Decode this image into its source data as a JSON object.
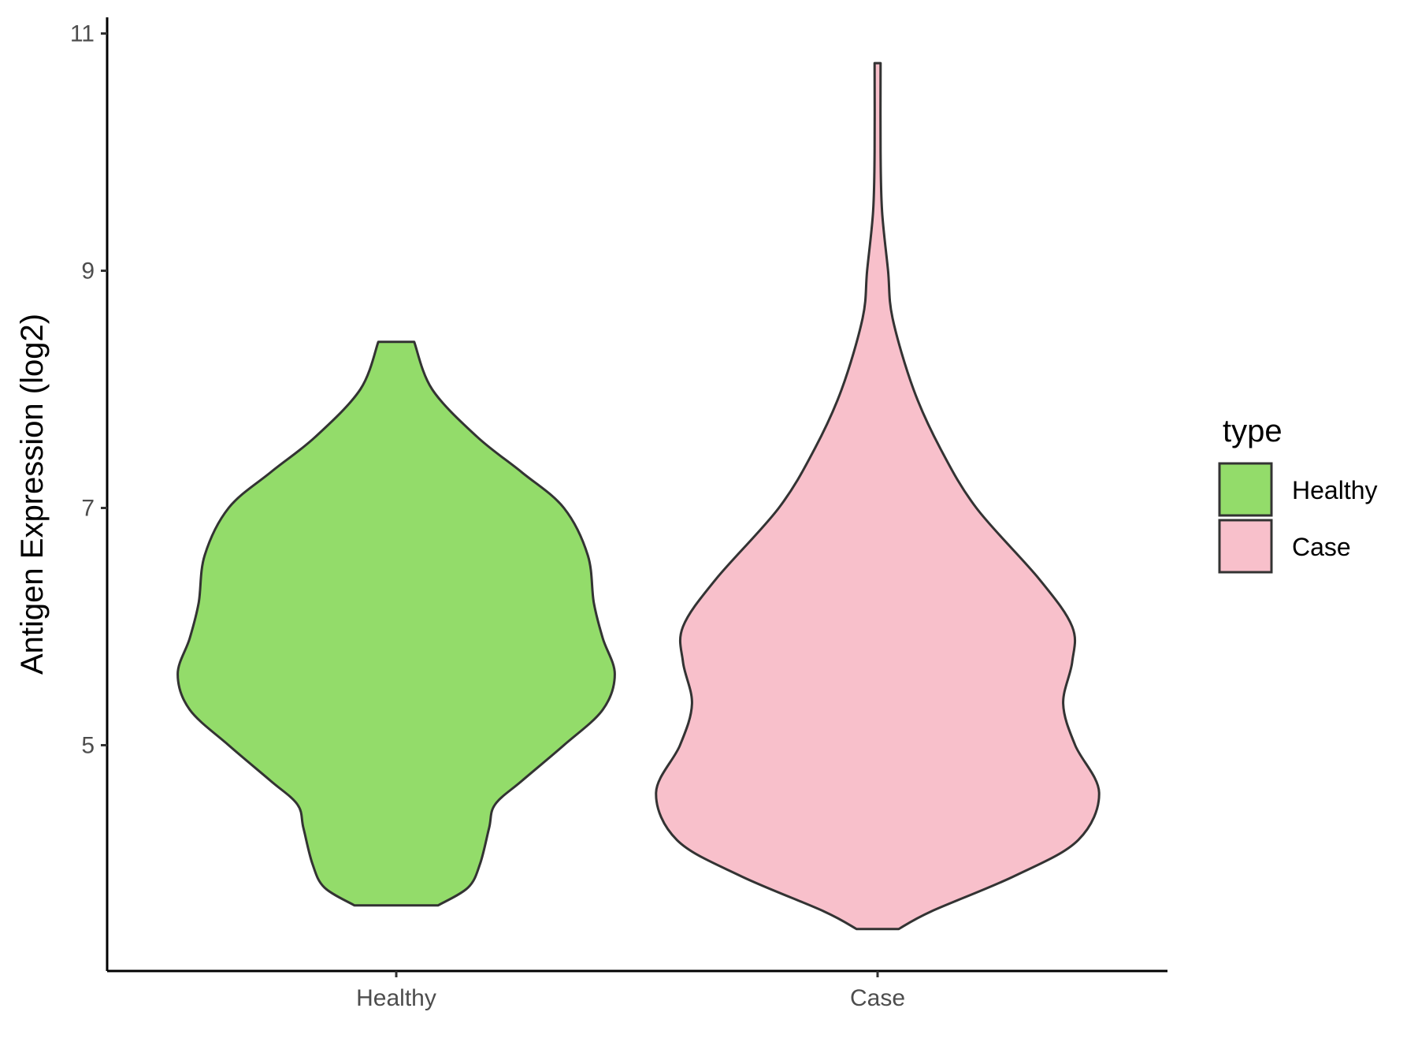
{
  "chart_data": {
    "type": "violin",
    "title": "",
    "xlabel": "",
    "ylabel": "Antigen Expression (log2)",
    "ylim": [
      3.1,
      11.15
    ],
    "yticks": [
      5,
      7,
      9,
      11
    ],
    "categories": [
      "Healthy",
      "Case"
    ],
    "grid": false,
    "legend": {
      "title": "type",
      "position": "right",
      "entries": [
        {
          "label": "Healthy",
          "color": "#93DC6A"
        },
        {
          "label": "Case",
          "color": "#F8C0CB"
        }
      ]
    },
    "series": [
      {
        "category": "Healthy",
        "color": "#93DC6A",
        "min": 3.65,
        "max": 8.4,
        "density_profile": [
          [
            3.65,
            0.14
          ],
          [
            3.8,
            0.24
          ],
          [
            4.0,
            0.28
          ],
          [
            4.3,
            0.31
          ],
          [
            4.5,
            0.33
          ],
          [
            4.7,
            0.42
          ],
          [
            5.0,
            0.56
          ],
          [
            5.3,
            0.69
          ],
          [
            5.6,
            0.73
          ],
          [
            5.9,
            0.69
          ],
          [
            6.2,
            0.66
          ],
          [
            6.6,
            0.64
          ],
          [
            7.0,
            0.56
          ],
          [
            7.3,
            0.42
          ],
          [
            7.6,
            0.27
          ],
          [
            8.0,
            0.12
          ],
          [
            8.4,
            0.06
          ]
        ]
      },
      {
        "category": "Case",
        "color": "#F8C0CB",
        "min": 3.45,
        "max": 10.75,
        "density_profile": [
          [
            3.45,
            0.07
          ],
          [
            3.6,
            0.18
          ],
          [
            3.9,
            0.46
          ],
          [
            4.2,
            0.67
          ],
          [
            4.6,
            0.74
          ],
          [
            5.0,
            0.66
          ],
          [
            5.35,
            0.62
          ],
          [
            5.7,
            0.65
          ],
          [
            6.0,
            0.65
          ],
          [
            6.4,
            0.54
          ],
          [
            7.0,
            0.33
          ],
          [
            7.5,
            0.21
          ],
          [
            8.0,
            0.12
          ],
          [
            8.6,
            0.05
          ],
          [
            9.0,
            0.035
          ],
          [
            9.5,
            0.015
          ],
          [
            10.0,
            0.01
          ],
          [
            10.75,
            0.01
          ]
        ]
      }
    ]
  }
}
